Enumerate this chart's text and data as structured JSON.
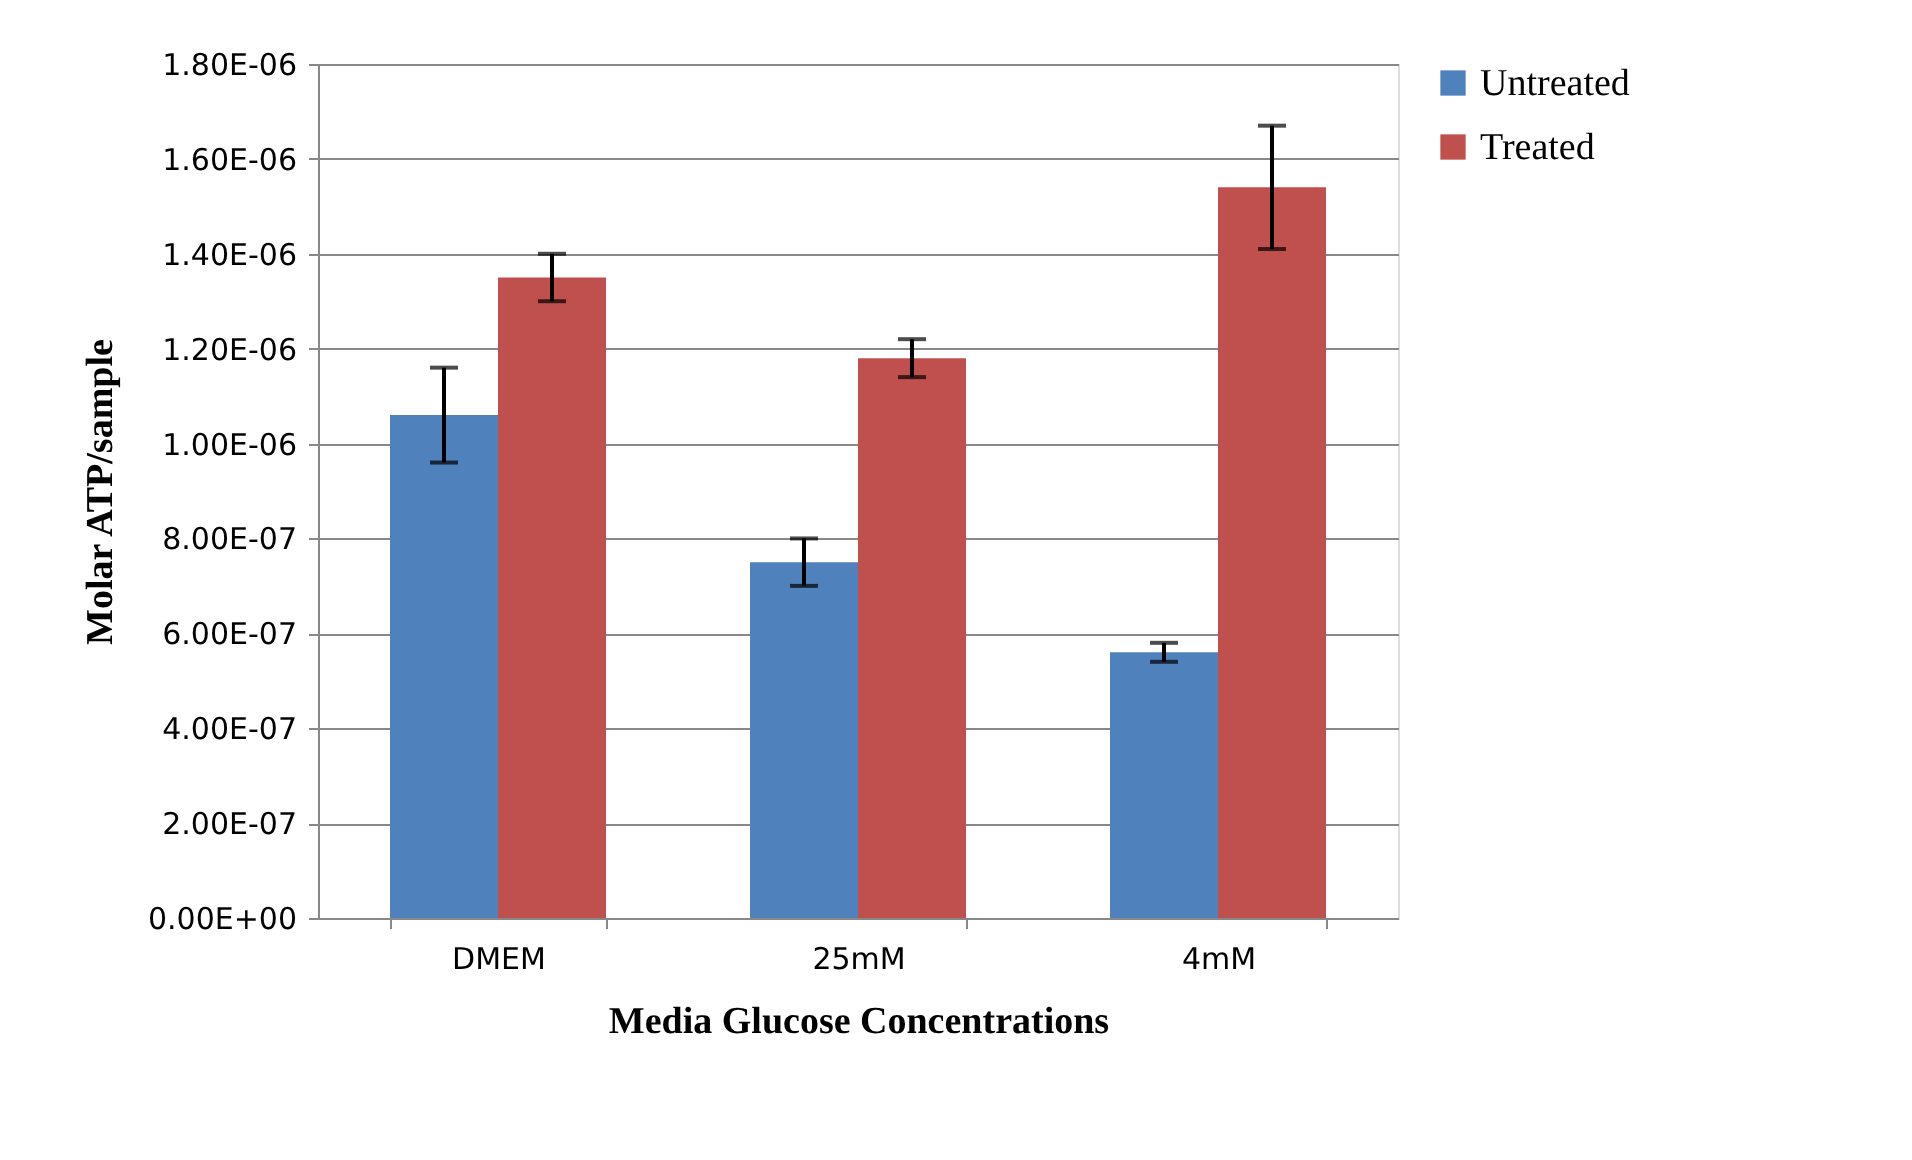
{
  "chart_data": {
    "type": "bar",
    "xlabel": "Media Glucose Concentrations",
    "ylabel": "Molar ATP/sample",
    "categories": [
      "DMEM",
      "25mM",
      "4mM"
    ],
    "series": [
      {
        "name": "Untreated",
        "color": "#4f81bd",
        "values": [
          1.06e-06,
          7.5e-07,
          5.6e-07
        ],
        "errors": [
          1e-07,
          5e-08,
          2e-08
        ]
      },
      {
        "name": "Treated",
        "color": "#c0504d",
        "values": [
          1.35e-06,
          1.18e-06,
          1.54e-06
        ],
        "errors": [
          5e-08,
          4e-08,
          1.3e-07
        ]
      }
    ],
    "ylim": [
      0,
      1.8e-06
    ],
    "yticks": [
      {
        "value": 0,
        "label": "0.00E+00"
      },
      {
        "value": 2e-07,
        "label": "2.00E-07"
      },
      {
        "value": 4e-07,
        "label": "4.00E-07"
      },
      {
        "value": 6e-07,
        "label": "6.00E-07"
      },
      {
        "value": 8e-07,
        "label": "8.00E-07"
      },
      {
        "value": 1e-06,
        "label": "1.00E-06"
      },
      {
        "value": 1.2e-06,
        "label": "1.20E-06"
      },
      {
        "value": 1.4e-06,
        "label": "1.40E-06"
      },
      {
        "value": 1.6e-06,
        "label": "1.60E-06"
      },
      {
        "value": 1.8e-06,
        "label": "1.80E-06"
      }
    ],
    "grid": "y",
    "legend": "right"
  }
}
